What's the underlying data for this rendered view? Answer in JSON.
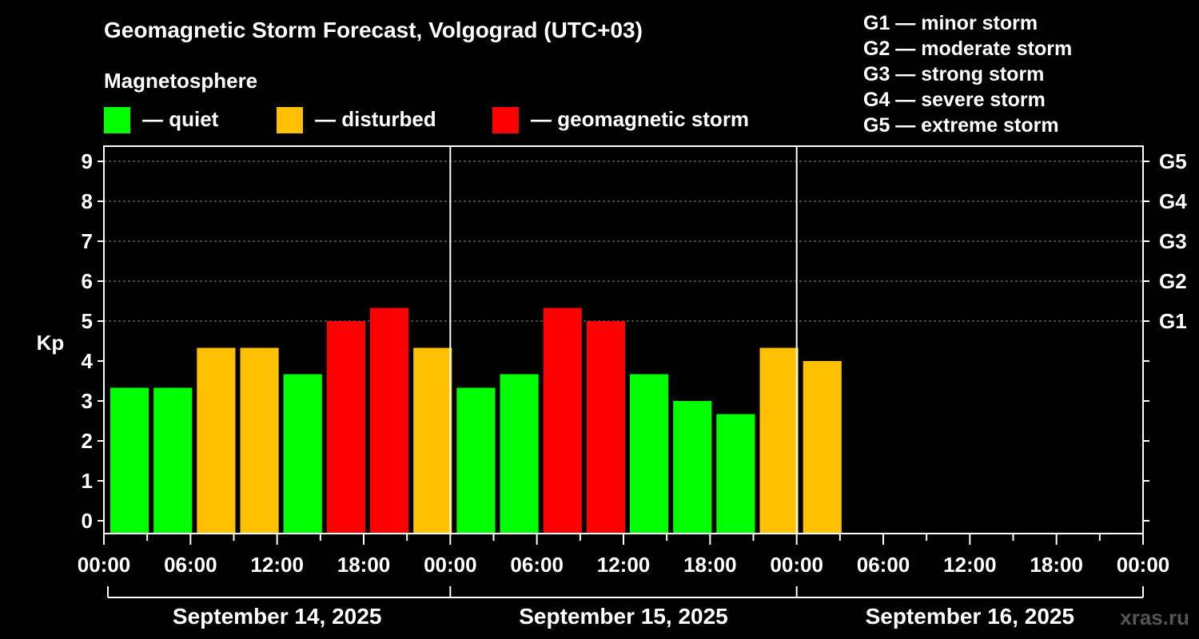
{
  "header": {
    "title": "Geomagnetic Storm Forecast, Volgograd (UTC+03)",
    "magnetosphere_label": "Magnetosphere"
  },
  "legend": [
    {
      "label": "— quiet",
      "color": "#00ff00"
    },
    {
      "label": "— disturbed",
      "color": "#ffc000"
    },
    {
      "label": "— geomagnetic storm",
      "color": "#ff0000"
    }
  ],
  "storm_scale": [
    "G1 — minor storm",
    "G2 — moderate storm",
    "G3 — strong storm",
    "G4 — severe storm",
    "G5 — extreme storm"
  ],
  "watermark": "xras.ru",
  "chart_data": {
    "type": "bar",
    "title": "Geomagnetic Storm Forecast, Volgograd (UTC+03)",
    "ylabel": "Kp",
    "ylim": [
      0,
      9
    ],
    "yticks": [
      "0",
      "1",
      "2",
      "3",
      "4",
      "5",
      "6",
      "7",
      "8",
      "9"
    ],
    "right_ticks": [
      {
        "kp": 5,
        "label": "G1"
      },
      {
        "kp": 6,
        "label": "G2"
      },
      {
        "kp": 7,
        "label": "G3"
      },
      {
        "kp": 8,
        "label": "G4"
      },
      {
        "kp": 9,
        "label": "G5"
      }
    ],
    "grid": "horizontal dashed at Kp 5-9",
    "days": [
      "September 14, 2025",
      "September 15, 2025",
      "September 16, 2025"
    ],
    "xtick_labels": [
      "00:00",
      "06:00",
      "12:00",
      "18:00",
      "00:00",
      "06:00",
      "12:00",
      "18:00",
      "00:00",
      "06:00",
      "12:00",
      "18:00",
      "00:00"
    ],
    "interval_hours": 3,
    "colors": {
      "quiet": "#00ff00",
      "disturbed": "#ffc000",
      "storm": "#ff0000"
    },
    "values": [
      3.33,
      3.33,
      4.33,
      4.33,
      3.67,
      5.0,
      5.33,
      4.33,
      3.33,
      3.67,
      5.33,
      5.0,
      3.67,
      3.0,
      2.67,
      4.33,
      4.0
    ],
    "categories": [
      "quiet",
      "quiet",
      "disturbed",
      "disturbed",
      "quiet",
      "storm",
      "storm",
      "disturbed",
      "quiet",
      "quiet",
      "storm",
      "storm",
      "quiet",
      "quiet",
      "quiet",
      "disturbed",
      "disturbed"
    ]
  }
}
